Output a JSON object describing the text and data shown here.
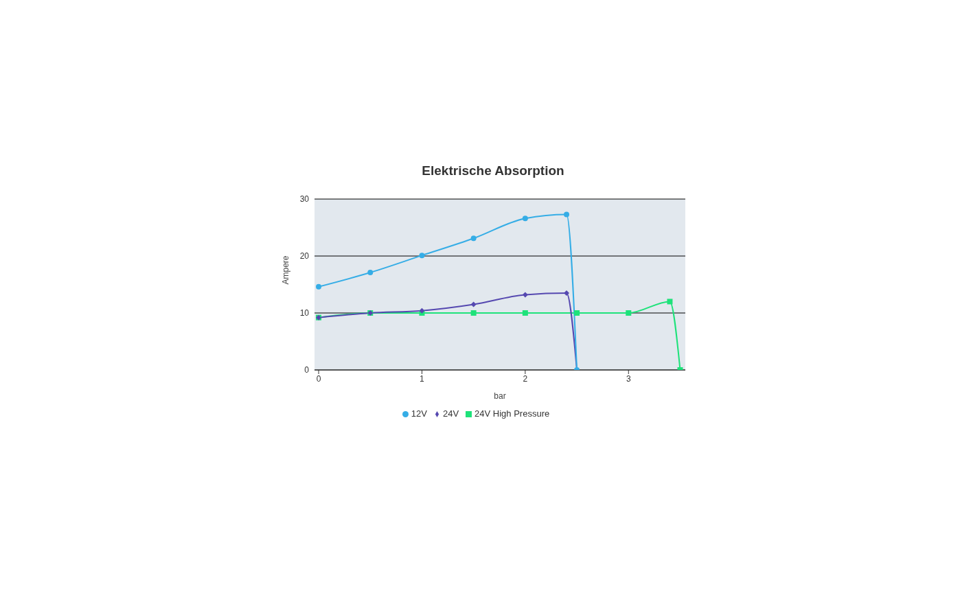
{
  "chart_data": {
    "type": "line",
    "title": "Elektrische Absorption",
    "xlabel": "bar",
    "ylabel": "Ampere",
    "xlim": [
      -0.04,
      3.55
    ],
    "xticks": [
      0,
      1,
      2,
      3
    ],
    "ylim": [
      0,
      30
    ],
    "yticks": [
      0,
      10,
      20,
      30
    ],
    "grid": "y",
    "legend": "bottom",
    "series": [
      {
        "name": "12V",
        "color": "#35ade6",
        "marker": "circle",
        "x": [
          0,
          0.5,
          1,
          1.5,
          2,
          2.4,
          2.5
        ],
        "values": [
          14.6,
          17.1,
          20.1,
          23.1,
          26.6,
          27.3,
          0
        ]
      },
      {
        "name": "24V",
        "color": "#5548b0",
        "marker": "diamond",
        "x": [
          0,
          0.5,
          1,
          1.5,
          2,
          2.4,
          2.5
        ],
        "values": [
          9.2,
          10,
          10.4,
          11.5,
          13.2,
          13.5,
          0
        ]
      },
      {
        "name": "24V High Pressure",
        "color": "#1ee27a",
        "marker": "square",
        "x": [
          0,
          0.5,
          1,
          1.5,
          2,
          2.5,
          3,
          3.4,
          3.5
        ],
        "values": [
          9.2,
          10,
          10,
          10,
          10,
          10,
          10,
          12,
          0
        ]
      }
    ]
  }
}
